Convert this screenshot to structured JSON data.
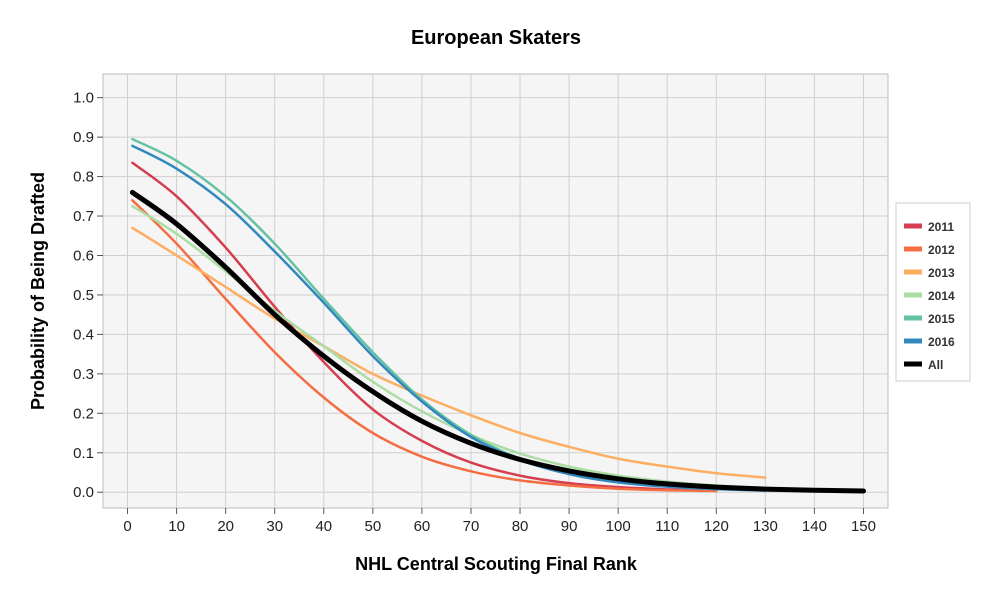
{
  "chart_data": {
    "type": "line",
    "title": "European Skaters",
    "xlabel": "NHL Central Scouting Final Rank",
    "ylabel": "Probability of Being Drafted",
    "xlim": [
      -5,
      155
    ],
    "ylim": [
      -0.04,
      1.06
    ],
    "xticks": [
      0,
      10,
      20,
      30,
      40,
      50,
      60,
      70,
      80,
      90,
      100,
      110,
      120,
      130,
      140,
      150
    ],
    "yticks": [
      0.0,
      0.1,
      0.2,
      0.3,
      0.4,
      0.5,
      0.6,
      0.7,
      0.8,
      0.9,
      1.0
    ],
    "xtick_labels": [
      "0",
      "10",
      "20",
      "30",
      "40",
      "50",
      "60",
      "70",
      "80",
      "90",
      "100",
      "110",
      "120",
      "130",
      "140",
      "150"
    ],
    "ytick_labels": [
      "0.0",
      "0.1",
      "0.2",
      "0.3",
      "0.4",
      "0.5",
      "0.6",
      "0.7",
      "0.8",
      "0.9",
      "1.0"
    ],
    "grid": true,
    "legend_position": "right",
    "series": [
      {
        "name": "2011",
        "color": "#d53e4f",
        "width": 2.5,
        "x": [
          1,
          10,
          20,
          30,
          40,
          50,
          60,
          70,
          80,
          90,
          100,
          110,
          120
        ],
        "y": [
          0.835,
          0.75,
          0.62,
          0.47,
          0.33,
          0.21,
          0.13,
          0.075,
          0.042,
          0.023,
          0.013,
          0.007,
          0.004
        ]
      },
      {
        "name": "2012",
        "color": "#f46d43",
        "width": 2.5,
        "x": [
          1,
          10,
          20,
          30,
          40,
          50,
          60,
          70,
          80,
          90,
          100,
          110,
          120
        ],
        "y": [
          0.74,
          0.63,
          0.49,
          0.355,
          0.24,
          0.15,
          0.09,
          0.053,
          0.03,
          0.017,
          0.009,
          0.005,
          0.003
        ]
      },
      {
        "name": "2013",
        "color": "#fdae61",
        "width": 2.5,
        "x": [
          1,
          10,
          20,
          30,
          40,
          50,
          60,
          70,
          80,
          90,
          100,
          110,
          120,
          130
        ],
        "y": [
          0.67,
          0.6,
          0.52,
          0.44,
          0.37,
          0.3,
          0.245,
          0.195,
          0.15,
          0.115,
          0.085,
          0.065,
          0.048,
          0.037
        ]
      },
      {
        "name": "2014",
        "color": "#abdda4",
        "width": 2.5,
        "x": [
          1,
          10,
          20,
          30,
          40,
          50,
          60,
          70,
          80,
          90,
          100,
          110,
          120,
          130
        ],
        "y": [
          0.725,
          0.655,
          0.56,
          0.46,
          0.37,
          0.28,
          0.205,
          0.145,
          0.098,
          0.065,
          0.042,
          0.027,
          0.017,
          0.011
        ]
      },
      {
        "name": "2015",
        "color": "#66c2a5",
        "width": 2.5,
        "x": [
          1,
          10,
          20,
          30,
          40,
          50,
          60,
          70,
          80,
          90,
          100,
          110,
          120,
          130
        ],
        "y": [
          0.895,
          0.84,
          0.75,
          0.63,
          0.49,
          0.355,
          0.235,
          0.145,
          0.085,
          0.048,
          0.027,
          0.015,
          0.008,
          0.005
        ]
      },
      {
        "name": "2016",
        "color": "#3288bd",
        "width": 2.5,
        "x": [
          1,
          10,
          20,
          30,
          40,
          50,
          60,
          70,
          80,
          90,
          100,
          110,
          120,
          130
        ],
        "y": [
          0.878,
          0.82,
          0.73,
          0.61,
          0.48,
          0.345,
          0.23,
          0.14,
          0.082,
          0.046,
          0.025,
          0.014,
          0.008,
          0.004
        ]
      },
      {
        "name": "All",
        "color": "#000000",
        "width": 5,
        "x": [
          1,
          10,
          20,
          30,
          40,
          50,
          60,
          70,
          80,
          90,
          100,
          110,
          120,
          130,
          140,
          150
        ],
        "y": [
          0.76,
          0.68,
          0.57,
          0.45,
          0.345,
          0.255,
          0.18,
          0.124,
          0.083,
          0.054,
          0.034,
          0.021,
          0.013,
          0.008,
          0.005,
          0.003
        ]
      }
    ]
  }
}
